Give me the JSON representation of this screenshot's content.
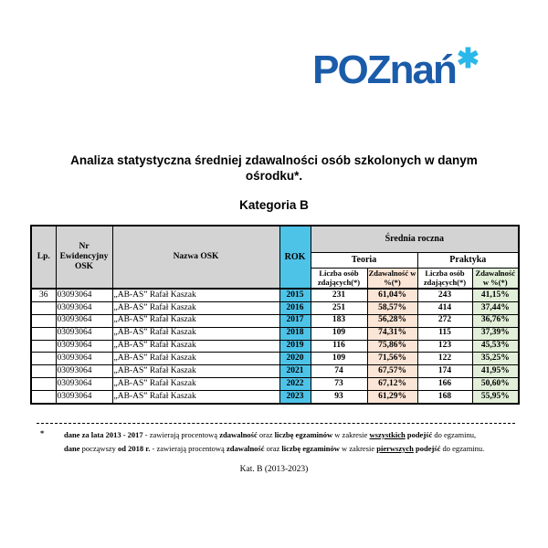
{
  "logo": {
    "text": "POZnań",
    "asterisk": "✱",
    "text_color": "#1b5caa",
    "asterisk_color": "#2ab7e9"
  },
  "title": {
    "line1": "Analiza statystyczna średniej zdawalności osób szkolonych w danym",
    "line2": "ośrodku*.",
    "category": "Kategoria B"
  },
  "table": {
    "headers": {
      "lp": "Lp.",
      "nr": "Nr Ewidencyjny OSK",
      "nazwa": "Nazwa OSK",
      "rok": "ROK",
      "srednia": "Średnia roczna",
      "teoria": "Teoria",
      "praktyka": "Praktyka",
      "liczba": "Liczba osób zdających(*)",
      "zdawalnosc": "Zdawalność w %(*)"
    },
    "colors": {
      "header_bg": "#d3d3d3",
      "rok_bg": "#4ec3e8",
      "teoria_zdawalnosc_bg": "#fbe5d6",
      "praktyka_zdawalnosc_bg": "#e2efd9"
    },
    "rows": [
      {
        "lp": "36",
        "nr": "03093064",
        "nazwa": "„AB-AS” Rafał Kaszak",
        "rok": "2015",
        "t_liczba": "231",
        "t_zdaw": "61,04%",
        "p_liczba": "243",
        "p_zdaw": "41,15%"
      },
      {
        "lp": "",
        "nr": "03093064",
        "nazwa": "„AB-AS” Rafał Kaszak",
        "rok": "2016",
        "t_liczba": "251",
        "t_zdaw": "58,57%",
        "p_liczba": "414",
        "p_zdaw": "37,44%"
      },
      {
        "lp": "",
        "nr": "03093064",
        "nazwa": "„AB-AS” Rafał Kaszak",
        "rok": "2017",
        "t_liczba": "183",
        "t_zdaw": "56,28%",
        "p_liczba": "272",
        "p_zdaw": "36,76%"
      },
      {
        "lp": "",
        "nr": "03093064",
        "nazwa": "„AB-AS” Rafał Kaszak",
        "rok": "2018",
        "t_liczba": "109",
        "t_zdaw": "74,31%",
        "p_liczba": "115",
        "p_zdaw": "37,39%"
      },
      {
        "lp": "",
        "nr": "03093064",
        "nazwa": "„AB-AS” Rafał Kaszak",
        "rok": "2019",
        "t_liczba": "116",
        "t_zdaw": "75,86%",
        "p_liczba": "123",
        "p_zdaw": "45,53%"
      },
      {
        "lp": "",
        "nr": "03093064",
        "nazwa": "„AB-AS” Rafał Kaszak",
        "rok": "2020",
        "t_liczba": "109",
        "t_zdaw": "71,56%",
        "p_liczba": "122",
        "p_zdaw": "35,25%"
      },
      {
        "lp": "",
        "nr": "03093064",
        "nazwa": "„AB-AS” Rafał Kaszak",
        "rok": "2021",
        "t_liczba": "74",
        "t_zdaw": "67,57%",
        "p_liczba": "174",
        "p_zdaw": "41,95%"
      },
      {
        "lp": "",
        "nr": "03093064",
        "nazwa": "„AB-AS” Rafał Kaszak",
        "rok": "2022",
        "t_liczba": "73",
        "t_zdaw": "67,12%",
        "p_liczba": "166",
        "p_zdaw": "50,60%"
      },
      {
        "lp": "",
        "nr": "03093064",
        "nazwa": "„AB-AS” Rafał Kaszak",
        "rok": "2023",
        "t_liczba": "93",
        "t_zdaw": "61,29%",
        "p_liczba": "168",
        "p_zdaw": "55,95%"
      }
    ]
  },
  "footnote": {
    "marker": "*",
    "lines": [
      [
        {
          "t": "dane za lata 2013 - 2017",
          "b": true
        },
        {
          "t": " -  zawierają procentową "
        },
        {
          "t": "zdawalność",
          "b": true
        },
        {
          "t": " oraz "
        },
        {
          "t": "liczbę egzaminów",
          "b": true
        },
        {
          "t": " w zakresie "
        },
        {
          "t": "wszystkich",
          "b": true,
          "u": true
        },
        {
          "t": " podejść",
          "b": true
        },
        {
          "t": " do egzaminu,"
        }
      ],
      [
        {
          "t": "dane",
          "b": true
        },
        {
          "t": " począwszy "
        },
        {
          "t": "od 2018 r.",
          "b": true
        },
        {
          "t": " -  zawierają procentową "
        },
        {
          "t": "zdawalność",
          "b": true
        },
        {
          "t": " oraz "
        },
        {
          "t": "liczbę egzaminów",
          "b": true
        },
        {
          "t": " w zakresie "
        },
        {
          "t": "pierwszych",
          "b": true,
          "u": true
        },
        {
          "t": " podejść",
          "b": true
        },
        {
          "t": " do egzaminu."
        }
      ]
    ]
  },
  "footer": "Kat. B (2013-2023)"
}
